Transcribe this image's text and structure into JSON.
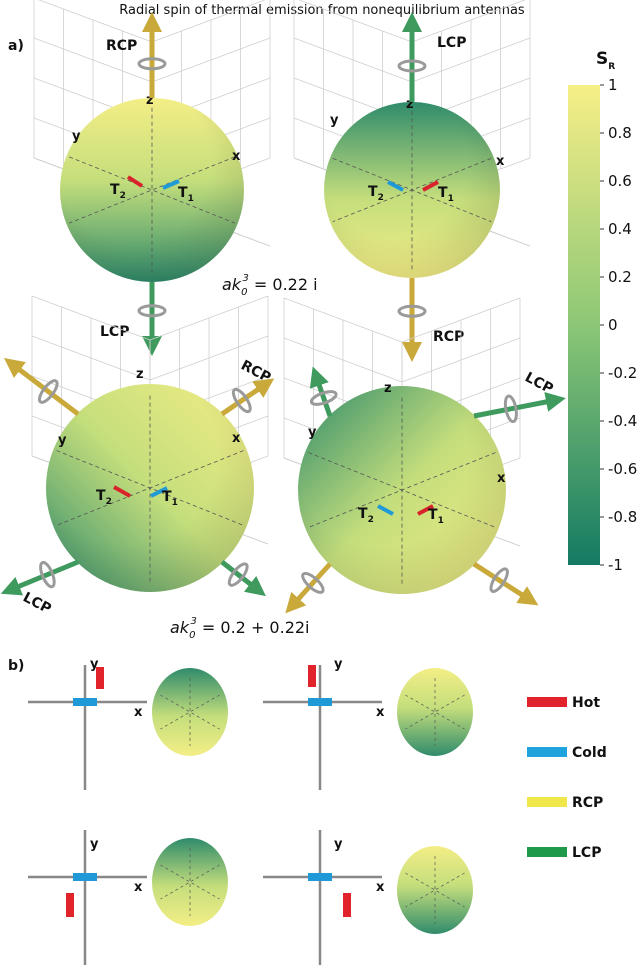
{
  "title": "Radial spin of thermal emission from nonequilibrium antennas",
  "panel_a": {
    "label": "a)",
    "spheres": [
      {
        "z": "z",
        "y": "y",
        "x": "x",
        "t1": {
          "letter": "T",
          "sub": "1"
        },
        "t2": {
          "letter": "T",
          "sub": "2"
        },
        "arrows": [
          "RCP",
          "LCP"
        ]
      },
      {
        "z": "z",
        "y": "y",
        "x": "x",
        "t1": {
          "letter": "T",
          "sub": "1"
        },
        "t2": {
          "letter": "T",
          "sub": "2"
        },
        "arrows": [
          "LCP",
          "RCP"
        ]
      },
      {
        "z": "z",
        "y": "y",
        "x": "x",
        "t1": {
          "letter": "T",
          "sub": "1"
        },
        "t2": {
          "letter": "T",
          "sub": "2"
        },
        "arrows": [
          "RCP",
          "LCP"
        ]
      },
      {
        "z": "z",
        "y": "y",
        "x": "x",
        "t1": {
          "letter": "T",
          "sub": "1"
        },
        "t2": {
          "letter": "T",
          "sub": "2"
        },
        "arrows": [
          "LCP",
          "RCP"
        ]
      }
    ],
    "equations": [
      {
        "lhs": "ak",
        "sub": "0",
        "sup": "3",
        "rhs": " = 0.22 i"
      },
      {
        "lhs": "ak",
        "sub": "0",
        "sup": "3",
        "rhs": " = 0.2 + 0.22i"
      }
    ]
  },
  "colorbar": {
    "label": "S",
    "label_sub": "R",
    "ticks": [
      1,
      0.8,
      0.6,
      0.4,
      0.2,
      0,
      -0.2,
      -0.4,
      -0.6,
      -0.8,
      -1
    ]
  },
  "panel_b": {
    "label": "b)",
    "diagrams": [
      {
        "y": "y",
        "x": "x"
      },
      {
        "y": "y",
        "x": "x"
      },
      {
        "y": "y",
        "x": "x"
      },
      {
        "y": "y",
        "x": "x"
      }
    ],
    "legend": [
      "Hot",
      "Cold",
      "RCP",
      "LCP"
    ]
  }
}
